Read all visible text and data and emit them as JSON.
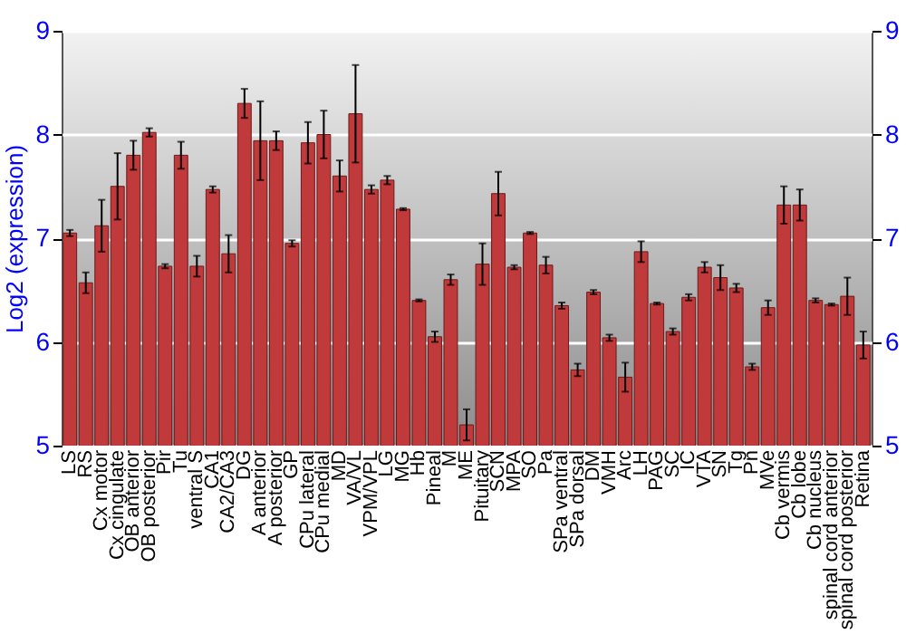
{
  "chart_data": {
    "type": "bar",
    "ylabel": "Log2 (expression)",
    "categories": [
      "LS",
      "RS",
      "Cx motor",
      "Cx cingulate",
      "OB anterior",
      "OB posterior",
      "Pir",
      "Tu",
      "ventral S",
      "CA1",
      "CA2/CA3",
      "DG",
      "A anterior",
      "A posterior",
      "GP",
      "CPu lateral",
      "CPu medial",
      "MD",
      "VA/VL",
      "VPM/VPL",
      "LG",
      "MG",
      "Hb",
      "Pineal",
      "M",
      "ME",
      "Pituitary",
      "SCN",
      "MPA",
      "SO",
      "Pa",
      "SPa ventral",
      "SPa dorsal",
      "DM",
      "VMH",
      "Arc",
      "LH",
      "PAG",
      "SC",
      "IC",
      "VTA",
      "SN",
      "Tg",
      "Pn",
      "MVe",
      "Cb vermis",
      "Cb lobe",
      "Cb nucleus",
      "spinal cord anterior",
      "spinal cord posterior",
      "Retina"
    ],
    "series": [
      {
        "color": "#c0393b",
        "values": [
          7.05,
          6.57,
          7.12,
          7.5,
          7.8,
          8.02,
          6.73,
          7.8,
          6.73,
          7.47,
          6.85,
          8.3,
          7.94,
          7.94,
          6.95,
          7.92,
          8.0,
          7.6,
          8.2,
          7.47,
          7.56,
          7.28,
          6.4,
          6.05,
          6.6,
          5.2,
          6.75,
          7.43,
          6.72,
          7.05,
          6.74,
          6.35,
          5.73,
          6.48,
          6.04,
          5.66,
          6.87,
          6.37,
          6.1,
          6.43,
          6.72,
          6.62,
          6.52,
          5.76,
          6.33,
          7.32,
          7.32,
          6.4,
          6.36,
          6.44,
          5.97
        ],
        "errors": [
          0.03,
          0.1,
          0.25,
          0.32,
          0.14,
          0.04,
          0.02,
          0.13,
          0.1,
          0.03,
          0.18,
          0.14,
          0.38,
          0.09,
          0.03,
          0.2,
          0.23,
          0.15,
          0.47,
          0.04,
          0.04,
          0.01,
          0.01,
          0.05,
          0.05,
          0.15,
          0.2,
          0.21,
          0.02,
          0.01,
          0.08,
          0.03,
          0.06,
          0.02,
          0.03,
          0.14,
          0.1,
          0.01,
          0.03,
          0.03,
          0.05,
          0.12,
          0.04,
          0.03,
          0.07,
          0.18,
          0.15,
          0.02,
          0.01,
          0.18,
          0.13
        ]
      }
    ],
    "ylim": [
      5,
      9
    ],
    "yticks": [
      5,
      6,
      7,
      8,
      9
    ],
    "y2lim": [
      5,
      9
    ],
    "y2ticks": [
      5,
      6,
      7,
      8,
      9
    ],
    "grid": "y"
  }
}
